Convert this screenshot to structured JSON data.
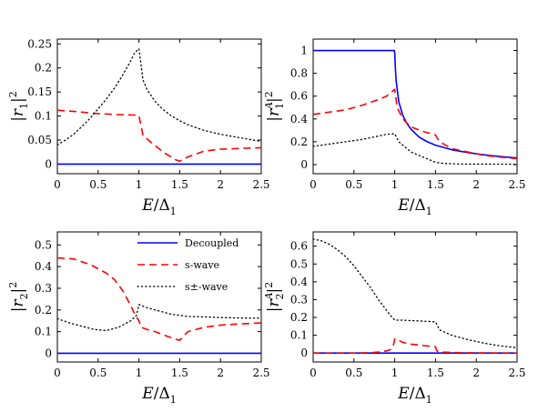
{
  "colors": {
    "decoupled": "#0000ff",
    "s_wave": "#ff0000",
    "s_pm_wave": "#000000",
    "axes": "#000000",
    "background": "#ffffff"
  },
  "legend": {
    "entries": [
      {
        "key": "decoupled",
        "label": "Decoupled",
        "style": "solid"
      },
      {
        "key": "s_wave",
        "label": "s-wave",
        "style": "dashed"
      },
      {
        "key": "s_pm_wave",
        "label": "s±-wave",
        "style": "dotted"
      }
    ],
    "placement": "upper-right of bottom-left panel"
  },
  "chart_data": [
    {
      "type": "line",
      "id": "r1",
      "xlabel": "E/Δ1",
      "ylabel": "|r1|²",
      "xlim": [
        0,
        2.5
      ],
      "ylim": [
        -0.02,
        0.26
      ],
      "xticks": [
        0,
        0.5,
        1,
        1.5,
        2,
        2.5
      ],
      "xtick_labels": [
        "0",
        "0.5",
        "1",
        "1.5",
        "2",
        "2.5"
      ],
      "yticks": [
        0,
        0.05,
        0.1,
        0.15,
        0.2,
        0.25
      ],
      "ytick_labels": [
        "0",
        "0.05",
        "0.1",
        "0.15",
        "0.2",
        "0.25"
      ],
      "grid": false,
      "series": [
        {
          "key": "decoupled",
          "style": "solid",
          "x": [
            0,
            2.5
          ],
          "y": [
            0,
            0
          ]
        },
        {
          "key": "s_wave",
          "style": "dashed",
          "x": [
            0,
            0.25,
            0.5,
            0.75,
            0.95,
            1.0,
            1.05,
            1.15,
            1.3,
            1.45,
            1.5,
            1.6,
            1.8,
            2.0,
            2.3,
            2.5
          ],
          "y": [
            0.112,
            0.109,
            0.105,
            0.103,
            0.102,
            0.101,
            0.06,
            0.045,
            0.025,
            0.009,
            0.006,
            0.015,
            0.027,
            0.031,
            0.033,
            0.034
          ]
        },
        {
          "key": "s_pm_wave",
          "style": "dotted",
          "x": [
            0,
            0.1,
            0.2,
            0.3,
            0.4,
            0.5,
            0.6,
            0.7,
            0.8,
            0.9,
            0.95,
            1.0,
            1.05,
            1.1,
            1.2,
            1.3,
            1.4,
            1.5,
            1.6,
            1.8,
            2.0,
            2.2,
            2.4,
            2.5
          ],
          "y": [
            0.04,
            0.05,
            0.062,
            0.078,
            0.095,
            0.115,
            0.135,
            0.158,
            0.185,
            0.215,
            0.232,
            0.24,
            0.175,
            0.155,
            0.13,
            0.113,
            0.1,
            0.09,
            0.082,
            0.07,
            0.062,
            0.056,
            0.05,
            0.047
          ]
        }
      ]
    },
    {
      "type": "line",
      "id": "r1A",
      "xlabel": "E/Δ1",
      "ylabel": "|r1A|²",
      "xlim": [
        0,
        2.5
      ],
      "ylim": [
        -0.08,
        1.1
      ],
      "xticks": [
        0,
        0.5,
        1,
        1.5,
        2,
        2.5
      ],
      "xtick_labels": [
        "0",
        "0.5",
        "1",
        "1.5",
        "2",
        "2.5"
      ],
      "yticks": [
        0,
        0.2,
        0.4,
        0.6,
        0.8,
        1
      ],
      "ytick_labels": [
        "0",
        "0.2",
        "0.4",
        "0.6",
        "0.8",
        "1"
      ],
      "grid": false,
      "series": [
        {
          "key": "decoupled",
          "style": "solid",
          "x": [
            0,
            0.995,
            1.0,
            1.01,
            1.02,
            1.05,
            1.1,
            1.15,
            1.2,
            1.3,
            1.4,
            1.5,
            1.7,
            1.9,
            2.1,
            2.3,
            2.5
          ],
          "y": [
            1.0,
            1.0,
            0.98,
            0.82,
            0.72,
            0.55,
            0.43,
            0.36,
            0.31,
            0.24,
            0.2,
            0.17,
            0.13,
            0.105,
            0.085,
            0.07,
            0.058
          ]
        },
        {
          "key": "s_wave",
          "style": "dashed",
          "x": [
            0,
            0.2,
            0.4,
            0.6,
            0.8,
            0.9,
            0.95,
            1.0,
            1.03,
            1.1,
            1.2,
            1.35,
            1.5,
            1.55,
            1.7,
            1.9,
            2.1,
            2.3,
            2.5
          ],
          "y": [
            0.44,
            0.46,
            0.48,
            0.52,
            0.57,
            0.6,
            0.63,
            0.66,
            0.5,
            0.4,
            0.33,
            0.29,
            0.26,
            0.2,
            0.14,
            0.11,
            0.08,
            0.065,
            0.052
          ]
        },
        {
          "key": "s_pm_wave",
          "style": "dotted",
          "x": [
            0,
            0.2,
            0.4,
            0.6,
            0.8,
            0.9,
            1.0,
            1.05,
            1.2,
            1.4,
            1.5,
            1.6,
            1.8,
            2.0,
            2.2,
            2.5
          ],
          "y": [
            0.16,
            0.18,
            0.2,
            0.22,
            0.25,
            0.265,
            0.27,
            0.2,
            0.11,
            0.05,
            0.02,
            0.01,
            0.005,
            0.004,
            0.004,
            0.003
          ]
        }
      ]
    },
    {
      "type": "line",
      "id": "r2",
      "xlabel": "E/Δ1",
      "ylabel": "|r2|²",
      "xlim": [
        0,
        2.5
      ],
      "ylim": [
        -0.04,
        0.56
      ],
      "xticks": [
        0,
        0.5,
        1,
        1.5,
        2,
        2.5
      ],
      "xtick_labels": [
        "0",
        "0.5",
        "1",
        "1.5",
        "2",
        "2.5"
      ],
      "yticks": [
        0,
        0.1,
        0.2,
        0.3,
        0.4,
        0.5
      ],
      "ytick_labels": [
        "0",
        "0.1",
        "0.2",
        "0.3",
        "0.4",
        "0.5"
      ],
      "grid": false,
      "series": [
        {
          "key": "decoupled",
          "style": "solid",
          "x": [
            0,
            2.5
          ],
          "y": [
            0,
            0
          ]
        },
        {
          "key": "s_wave",
          "style": "dashed",
          "x": [
            0,
            0.2,
            0.4,
            0.6,
            0.7,
            0.8,
            0.9,
            0.95,
            1.0,
            1.03,
            1.1,
            1.2,
            1.3,
            1.45,
            1.5,
            1.6,
            1.8,
            2.0,
            2.2,
            2.5
          ],
          "y": [
            0.44,
            0.435,
            0.41,
            0.37,
            0.34,
            0.29,
            0.22,
            0.18,
            0.15,
            0.12,
            0.11,
            0.1,
            0.085,
            0.065,
            0.06,
            0.1,
            0.12,
            0.13,
            0.135,
            0.14
          ]
        },
        {
          "key": "s_pm_wave",
          "style": "dotted",
          "x": [
            0,
            0.15,
            0.3,
            0.45,
            0.6,
            0.75,
            0.9,
            0.97,
            1.0,
            1.1,
            1.2,
            1.3,
            1.4,
            1.5,
            1.6,
            1.8,
            2.0,
            2.2,
            2.5
          ],
          "y": [
            0.16,
            0.14,
            0.125,
            0.11,
            0.105,
            0.12,
            0.15,
            0.175,
            0.225,
            0.21,
            0.2,
            0.19,
            0.18,
            0.175,
            0.17,
            0.168,
            0.165,
            0.163,
            0.162
          ]
        }
      ]
    },
    {
      "type": "line",
      "id": "r2A",
      "xlabel": "E/Δ1",
      "ylabel": "|r2A|²",
      "xlim": [
        0,
        2.5
      ],
      "ylim": [
        -0.05,
        0.68
      ],
      "xticks": [
        0,
        0.5,
        1,
        1.5,
        2,
        2.5
      ],
      "xtick_labels": [
        "0",
        "0.5",
        "1",
        "1.5",
        "2",
        "2.5"
      ],
      "yticks": [
        0,
        0.1,
        0.2,
        0.3,
        0.4,
        0.5,
        0.6
      ],
      "ytick_labels": [
        "0",
        "0.1",
        "0.2",
        "0.3",
        "0.4",
        "0.5",
        "0.6"
      ],
      "grid": false,
      "series": [
        {
          "key": "decoupled",
          "style": "solid",
          "x": [
            0,
            2.5
          ],
          "y": [
            0,
            0
          ]
        },
        {
          "key": "s_wave",
          "style": "dashed",
          "x": [
            0,
            0.5,
            0.7,
            0.8,
            0.9,
            0.95,
            0.98,
            1.0,
            1.05,
            1.1,
            1.2,
            1.3,
            1.4,
            1.5,
            1.52,
            1.6,
            1.8,
            2.0,
            2.5
          ],
          "y": [
            0,
            0,
            0.002,
            0.006,
            0.012,
            0.02,
            0.035,
            0.08,
            0.07,
            0.06,
            0.05,
            0.045,
            0.04,
            0.035,
            0.01,
            0.005,
            0.002,
            0.001,
            0
          ]
        },
        {
          "key": "s_pm_wave",
          "style": "dotted",
          "x": [
            0,
            0.1,
            0.2,
            0.3,
            0.4,
            0.5,
            0.6,
            0.7,
            0.8,
            0.9,
            0.95,
            1.0,
            1.05,
            1.1,
            1.2,
            1.4,
            1.5,
            1.55,
            1.7,
            1.9,
            2.1,
            2.3,
            2.5
          ],
          "y": [
            0.64,
            0.63,
            0.61,
            0.58,
            0.54,
            0.49,
            0.43,
            0.37,
            0.3,
            0.24,
            0.21,
            0.185,
            0.185,
            0.185,
            0.182,
            0.178,
            0.175,
            0.13,
            0.1,
            0.075,
            0.055,
            0.04,
            0.03
          ]
        }
      ]
    }
  ]
}
